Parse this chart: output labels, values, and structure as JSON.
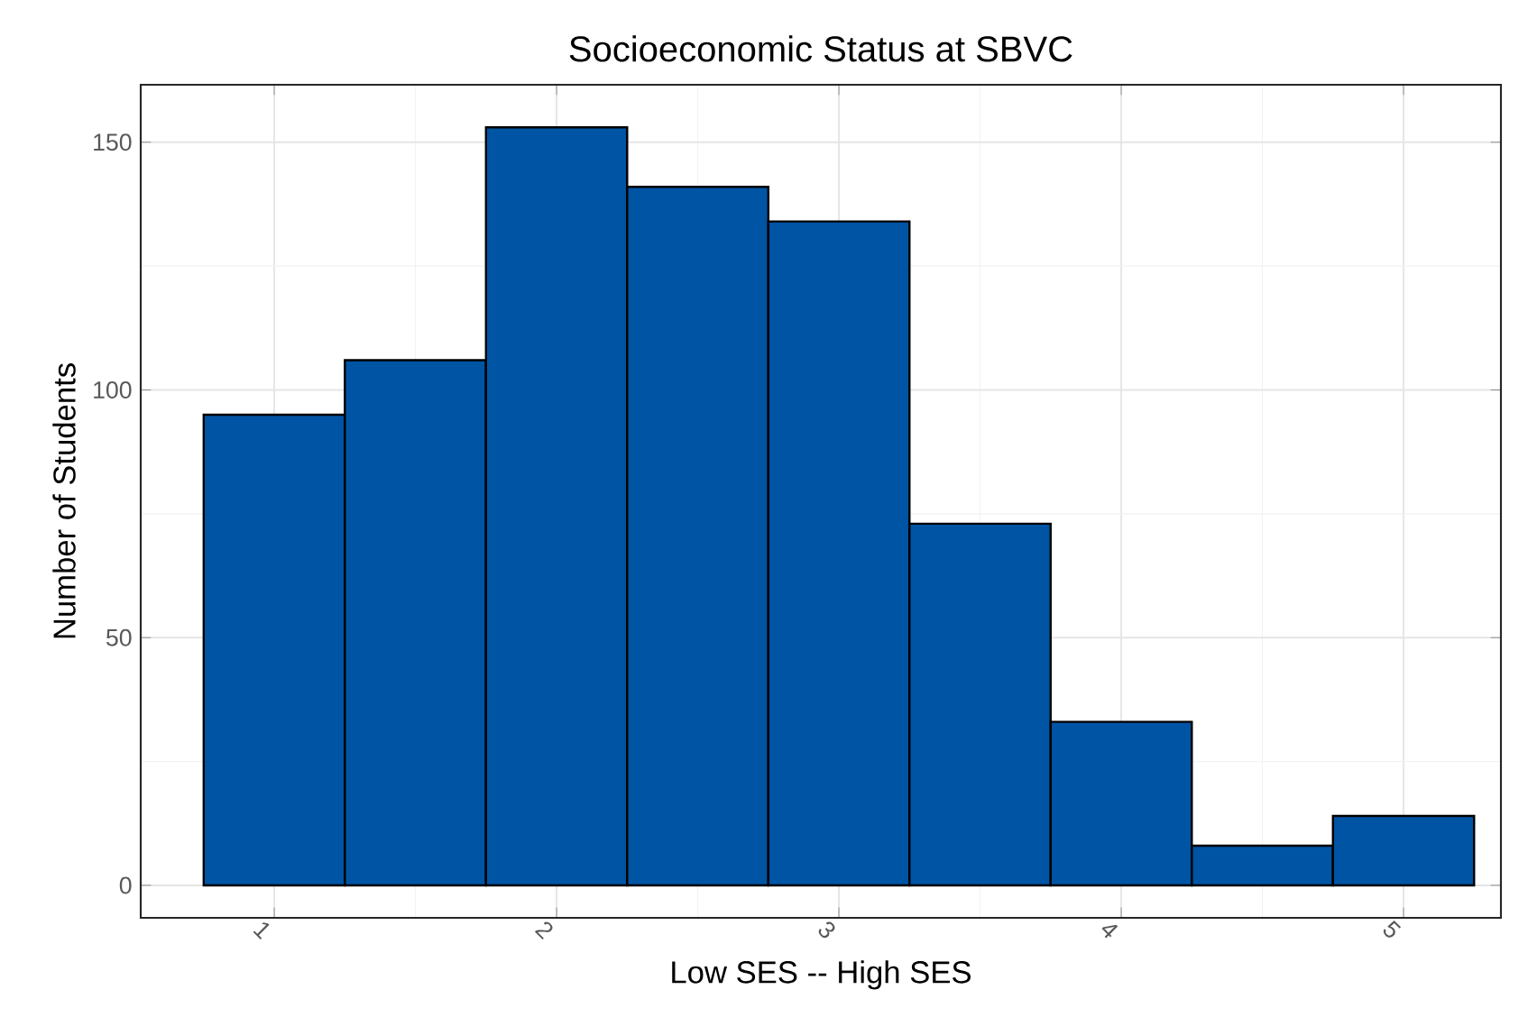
{
  "chart_data": {
    "type": "histogram",
    "title": "Socioeconomic Status at SBVC",
    "xlabel": "Low SES -- High SES",
    "ylabel": "Number of Students",
    "bins": [
      0.75,
      1.25,
      1.75,
      2.25,
      2.75,
      3.25,
      3.75,
      4.25,
      4.75,
      5.25
    ],
    "values": [
      95,
      106,
      153,
      141,
      134,
      73,
      33,
      8,
      14
    ],
    "color": "#0054a4",
    "xlim": [
      0.527,
      5.345
    ],
    "ylim": [
      -6.55,
      161.6
    ],
    "xticks": [
      1,
      2,
      3,
      4,
      5
    ],
    "yticks": [
      0,
      50,
      100,
      150
    ],
    "grid": true
  }
}
